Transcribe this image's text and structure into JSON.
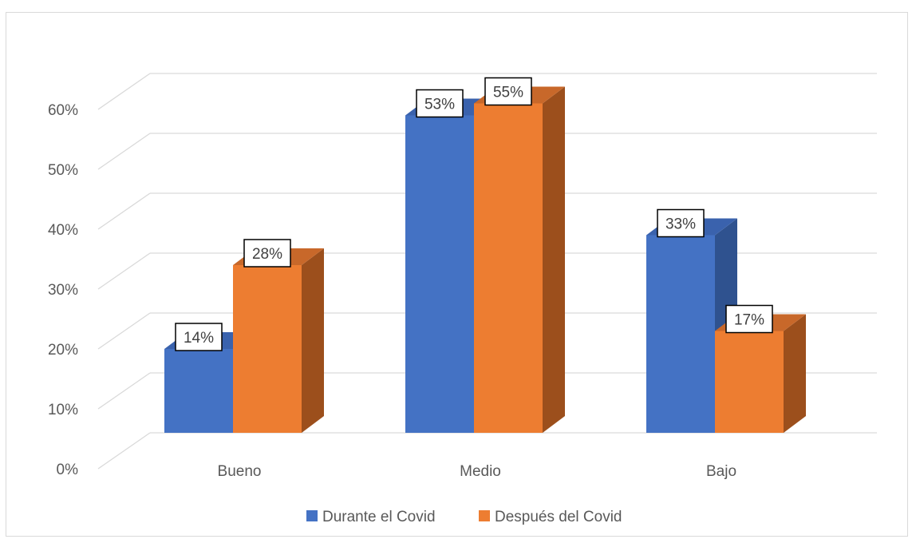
{
  "chart_data": {
    "type": "bar",
    "title": "",
    "xlabel": "",
    "ylabel": "",
    "categories": [
      "Bueno",
      "Medio",
      "Bajo"
    ],
    "series": [
      {
        "name": "Durante el Covid",
        "values": [
          14,
          53,
          33
        ],
        "labels": [
          "14%",
          "53%",
          "33%"
        ],
        "color": "#4472C4",
        "side_color": "#2F528F",
        "top_color": "#3A62AD"
      },
      {
        "name": "Después del Covid",
        "values": [
          28,
          55,
          17
        ],
        "labels": [
          "28%",
          "55%",
          "17%"
        ],
        "color": "#ED7D31",
        "side_color": "#9C4F1C",
        "top_color": "#C8682A"
      }
    ],
    "ylim": [
      0,
      60
    ],
    "yticks": [
      0,
      10,
      20,
      30,
      40,
      50,
      60
    ],
    "ytick_labels": [
      "0%",
      "10%",
      "20%",
      "30%",
      "40%",
      "50%",
      "60%"
    ],
    "grid": true,
    "legend": "bottom",
    "style": "3d-clustered-column"
  }
}
